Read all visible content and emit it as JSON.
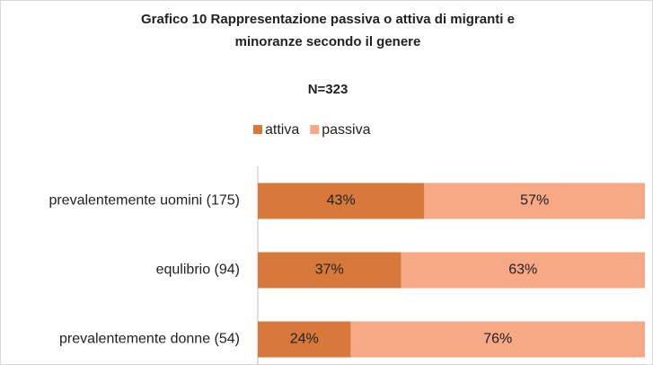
{
  "chart_data": {
    "type": "stacked-barh",
    "title": [
      "Grafico 10 Rappresentazione passiva o attiva di migranti e",
      "minoranze secondo il genere"
    ],
    "subtitle": "N=323",
    "categories": [
      "prevalentemente uomini (175)",
      "equlibrio (94)",
      "prevalentemente donne (54)"
    ],
    "series": [
      {
        "name": "attiva",
        "color": "#d7793b",
        "values": [
          43,
          37,
          24
        ],
        "value_labels": [
          "43%",
          "37%",
          "24%"
        ]
      },
      {
        "name": "passiva",
        "color": "#f7a885",
        "values": [
          57,
          63,
          76
        ],
        "value_labels": [
          "57%",
          "63%",
          "76%"
        ]
      }
    ],
    "xlim": [
      0,
      100
    ],
    "legend": "top"
  }
}
